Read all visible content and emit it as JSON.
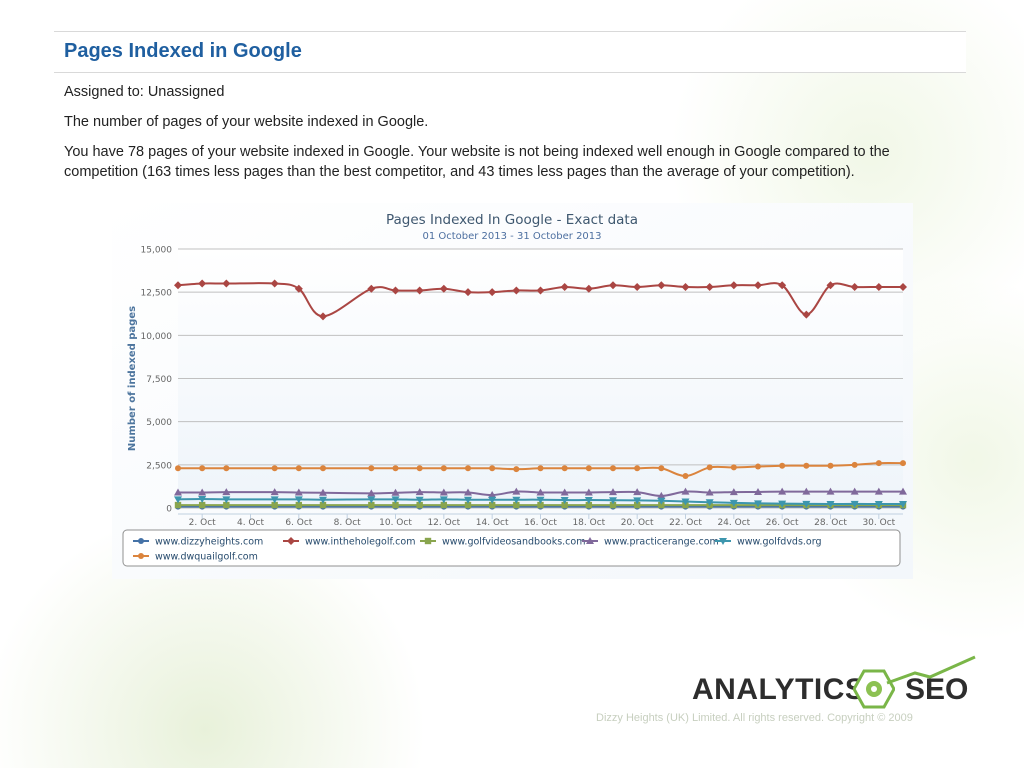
{
  "page": {
    "title": "Pages Indexed in Google",
    "assigned": "Assigned to: Unassigned",
    "intro": "The number of pages of your website indexed in Google.",
    "detail": "You have 78 pages of your website indexed in Google. Your website is not being indexed well enough in Google compared to the competition (163 times less pages than the best competitor, and 43 times less pages than the average of your competition)."
  },
  "footer": {
    "logo_left": "ANALYTICS",
    "logo_right": "SEO",
    "copyright": "Dizzy Heights (UK) Limited. All rights reserved. Copyright © 2009"
  },
  "chart_data": {
    "type": "line",
    "title": "Pages Indexed In Google - Exact data",
    "subtitle": "01 October 2013 - 31 October 2013",
    "ylabel": "Number of indexed pages",
    "ylim": [
      0,
      15000
    ],
    "yticks": [
      "0",
      "2,500",
      "5,000",
      "7,500",
      "10,000",
      "12,500",
      "15,000"
    ],
    "xticks": [
      "2. Oct",
      "4. Oct",
      "6. Oct",
      "8. Oct",
      "10. Oct",
      "12. Oct",
      "14. Oct",
      "16. Oct",
      "18. Oct",
      "20. Oct",
      "22. Oct",
      "24. Oct",
      "26. Oct",
      "28. Oct",
      "30. Oct"
    ],
    "grid": true,
    "legend_position": "bottom",
    "x": [
      1,
      2,
      3,
      5,
      6,
      7,
      9,
      10,
      11,
      12,
      13,
      14,
      15,
      16,
      17,
      18,
      19,
      20,
      21,
      22,
      23,
      24,
      25,
      26,
      27,
      28,
      29,
      30,
      31
    ],
    "series": [
      {
        "name": "www.dizzyheights.com",
        "color": "#4572a7",
        "marker": "circle",
        "values": [
          78,
          78,
          78,
          78,
          78,
          78,
          78,
          78,
          78,
          78,
          78,
          78,
          78,
          78,
          78,
          78,
          78,
          78,
          78,
          78,
          78,
          78,
          78,
          78,
          78,
          78,
          78,
          78,
          78
        ]
      },
      {
        "name": "www.intheholegolf.com",
        "color": "#aa4643",
        "marker": "diamond",
        "values": [
          12900,
          13000,
          13000,
          13000,
          12700,
          11100,
          12700,
          12600,
          12600,
          12700,
          12500,
          12500,
          12600,
          12600,
          12800,
          12700,
          12900,
          12800,
          12900,
          12800,
          12800,
          12900,
          12900,
          12900,
          11200,
          12900,
          12800,
          12800,
          12800
        ]
      },
      {
        "name": "www.golfvideosandbooks.com",
        "color": "#89a54e",
        "marker": "square",
        "values": [
          170,
          170,
          170,
          170,
          170,
          170,
          170,
          170,
          170,
          170,
          170,
          170,
          170,
          170,
          170,
          170,
          170,
          170,
          170,
          170,
          170,
          170,
          170,
          170,
          170,
          170,
          170,
          170,
          170
        ]
      },
      {
        "name": "www.practicerange.com",
        "color": "#80699b",
        "marker": "triangle",
        "values": [
          900,
          900,
          920,
          920,
          900,
          880,
          850,
          880,
          920,
          900,
          900,
          750,
          950,
          900,
          900,
          900,
          920,
          920,
          700,
          950,
          900,
          920,
          930,
          950,
          950,
          950,
          950,
          950,
          950
        ]
      },
      {
        "name": "www.golfdvds.org",
        "color": "#3d96ae",
        "marker": "triangle-down",
        "values": [
          500,
          520,
          500,
          500,
          500,
          480,
          500,
          500,
          480,
          500,
          480,
          480,
          480,
          480,
          460,
          460,
          450,
          440,
          420,
          380,
          330,
          300,
          270,
          250,
          240,
          230,
          240,
          230,
          230
        ]
      },
      {
        "name": "www.dwquailgolf.com",
        "color": "#db843d",
        "marker": "circle",
        "values": [
          2300,
          2300,
          2300,
          2300,
          2300,
          2300,
          2300,
          2300,
          2300,
          2300,
          2300,
          2300,
          2250,
          2300,
          2300,
          2300,
          2300,
          2300,
          2300,
          1850,
          2350,
          2350,
          2400,
          2450,
          2450,
          2450,
          2500,
          2600,
          2600
        ]
      }
    ]
  }
}
